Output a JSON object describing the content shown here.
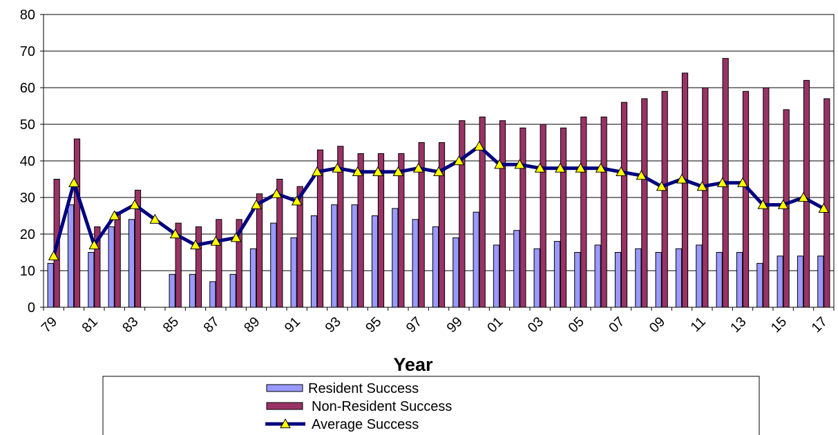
{
  "chart_data": {
    "type": "bar",
    "title": "",
    "xlabel": "Year",
    "ylabel": "",
    "ylim": [
      0,
      80
    ],
    "y_ticks": [
      0,
      10,
      20,
      30,
      40,
      50,
      60,
      70,
      80
    ],
    "grid": true,
    "legend_position": "bottom",
    "categories": [
      "79",
      "80",
      "81",
      "82",
      "83",
      "84",
      "85",
      "86",
      "87",
      "88",
      "89",
      "90",
      "91",
      "92",
      "93",
      "94",
      "95",
      "96",
      "97",
      "98",
      "99",
      "00",
      "01",
      "02",
      "03",
      "04",
      "05",
      "06",
      "07",
      "08",
      "09",
      "10",
      "11",
      "12",
      "13",
      "14",
      "15",
      "16",
      "17"
    ],
    "x_tick_labels": [
      "79",
      "81",
      "83",
      "85",
      "87",
      "89",
      "91",
      "93",
      "95",
      "97",
      "99",
      "01",
      "03",
      "05",
      "07",
      "09",
      "11",
      "13",
      "15",
      "17"
    ],
    "series": [
      {
        "name": "Resident Success",
        "type": "bar",
        "color": "#9999ff",
        "values": [
          12,
          28,
          15,
          22,
          24,
          0,
          9,
          9,
          7,
          9,
          16,
          23,
          19,
          25,
          28,
          28,
          25,
          27,
          24,
          22,
          19,
          26,
          17,
          21,
          16,
          18,
          15,
          17,
          15,
          16,
          15,
          16,
          17,
          15,
          15,
          12,
          14,
          14,
          14
        ]
      },
      {
        "name": "Non-Resident Success",
        "type": "bar",
        "color": "#993366",
        "values": [
          35,
          46,
          22,
          26,
          32,
          0,
          23,
          22,
          24,
          24,
          31,
          35,
          33,
          43,
          44,
          42,
          42,
          42,
          45,
          45,
          51,
          52,
          51,
          49,
          50,
          49,
          52,
          52,
          56,
          57,
          59,
          64,
          60,
          68,
          59,
          60,
          54,
          62,
          57
        ]
      },
      {
        "name": "Average Success",
        "type": "line",
        "color": "#000080",
        "marker_color": "#ffff00",
        "values": [
          14,
          34,
          17,
          25,
          28,
          24,
          20,
          17,
          18,
          19,
          28,
          31,
          29,
          37,
          38,
          37,
          37,
          37,
          38,
          37,
          40,
          44,
          39,
          39,
          38,
          38,
          38,
          38,
          37,
          36,
          33,
          35,
          33,
          34,
          34,
          28,
          28,
          30,
          27
        ]
      }
    ]
  }
}
